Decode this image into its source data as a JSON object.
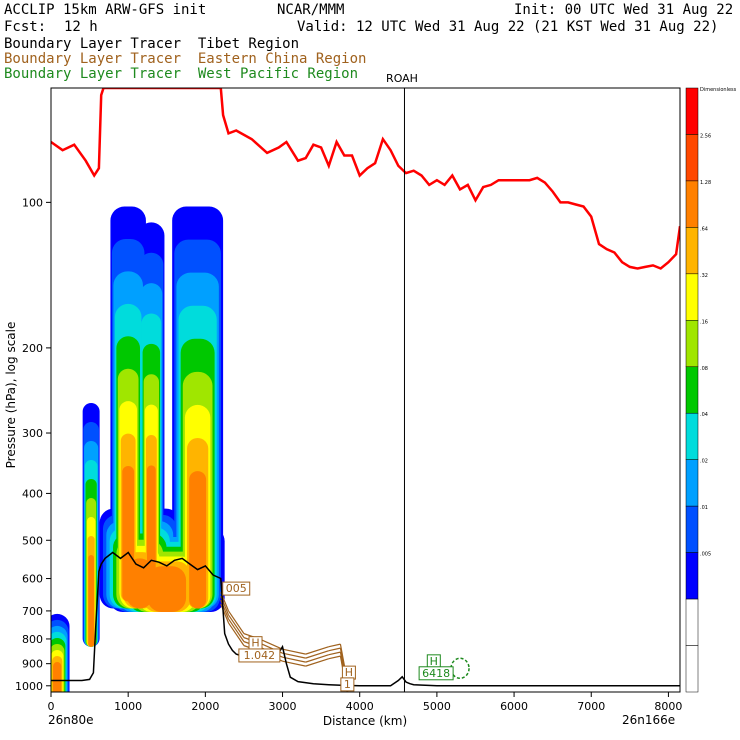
{
  "header": {
    "model": "ACCLIP 15km ARW-GFS init",
    "org": "NCAR/MMM",
    "init": "Init: 00 UTC Wed 31 Aug 22",
    "fcst_label": "Fcst:",
    "fcst_value": "12 h",
    "valid": "Valid: 12 UTC Wed 31 Aug 22 (21 KST Wed 31 Aug 22)",
    "legend": [
      {
        "text": "Boundary Layer Tracer  Tibet Region",
        "color": "#000000"
      },
      {
        "text": "Boundary Layer Tracer  Eastern China Region",
        "color": "#a0621e"
      },
      {
        "text": "Boundary Layer Tracer  West Pacific Region",
        "color": "#1e8a1e"
      }
    ]
  },
  "chart_data": {
    "type": "cross-section",
    "xlabel": "Distance (km)",
    "ylabel": "Pressure (hPa), log scale",
    "xlim": [
      0,
      8150
    ],
    "ylim": [
      1030,
      58
    ],
    "x_ticks": [
      0,
      1000,
      2000,
      3000,
      4000,
      5000,
      6000,
      7000,
      8000
    ],
    "y_ticks": [
      100,
      200,
      300,
      400,
      500,
      600,
      700,
      800,
      900,
      1000
    ],
    "endpoints": {
      "left": "26n80e",
      "right": "26n166e"
    },
    "vertical_marker": {
      "label": "ROAH",
      "x_km": 4580
    },
    "colorbar": {
      "colors": [
        "#ffffff",
        "#ffffff",
        "#0000ff",
        "#0050ff",
        "#00a0ff",
        "#00dcdc",
        "#00c800",
        "#a0e600",
        "#ffff00",
        "#ffb400",
        "#ff8000",
        "#ff4800",
        "#ff0000"
      ],
      "labels": [
        "Dimensionless",
        "2.56",
        "1.28",
        ".64",
        ".32",
        ".16",
        ".08",
        ".04",
        ".02",
        ".01",
        ".005"
      ]
    },
    "tropopause": {
      "color": "#ff0000",
      "x": [
        0,
        150,
        300,
        450,
        560,
        620,
        650,
        680,
        690,
        700,
        1000,
        1500,
        2000,
        2200,
        2230,
        2300,
        2400,
        2600,
        2800,
        2950,
        3050,
        3200,
        3300,
        3400,
        3500,
        3600,
        3700,
        3800,
        3900,
        4000,
        4100,
        4200,
        4300,
        4400,
        4500,
        4600,
        4700,
        4800,
        4900,
        5000,
        5100,
        5200,
        5300,
        5400,
        5500,
        5600,
        5700,
        5800,
        5900,
        6000,
        6100,
        6200,
        6300,
        6400,
        6500,
        6600,
        6700,
        6800,
        6900,
        7000,
        7100,
        7200,
        7300,
        7400,
        7500,
        7600,
        7700,
        7800,
        7900,
        8000,
        8100,
        8150
      ],
      "y": [
        75,
        78,
        76,
        82,
        88,
        85,
        60,
        58,
        58,
        58,
        58,
        58,
        58,
        58,
        66,
        72,
        71,
        74,
        79,
        77,
        75,
        82,
        81,
        76,
        77,
        84,
        75,
        80,
        80,
        88,
        85,
        83,
        74,
        78,
        84,
        87,
        86,
        88,
        92,
        90,
        92,
        88,
        94,
        92,
        99,
        93,
        92,
        90,
        90,
        90,
        90,
        90,
        89,
        91,
        95,
        100,
        100,
        101,
        102,
        107,
        122,
        125,
        127,
        133,
        136,
        137,
        136,
        135,
        137,
        133,
        128,
        112
      ]
    },
    "terrain": {
      "color": "#000000",
      "x": [
        0,
        100,
        200,
        300,
        400,
        500,
        550,
        580,
        620,
        650,
        700,
        800,
        900,
        1000,
        1100,
        1200,
        1300,
        1400,
        1500,
        1600,
        1700,
        1800,
        1900,
        2000,
        2100,
        2200,
        2250,
        2300,
        2350,
        2400,
        2500,
        2600,
        2700,
        2800,
        2850,
        2900,
        2950,
        3000,
        3050,
        3100,
        3200,
        3400,
        3600,
        3800,
        4000,
        4200,
        4400,
        4500,
        4550,
        4600,
        4650,
        4700,
        5000,
        6000,
        7000,
        8000,
        8150
      ],
      "y": [
        975,
        975,
        975,
        975,
        975,
        970,
        940,
        750,
        580,
        560,
        545,
        530,
        545,
        530,
        560,
        570,
        550,
        555,
        565,
        550,
        545,
        560,
        575,
        565,
        590,
        600,
        780,
        820,
        845,
        860,
        870,
        880,
        875,
        890,
        880,
        860,
        855,
        830,
        900,
        960,
        980,
        990,
        995,
        998,
        1000,
        1000,
        1000,
        975,
        958,
        982,
        990,
        995,
        1000,
        1000,
        1000,
        1000,
        1000
      ]
    },
    "tracer_fields": [
      {
        "region": "Tibet Region",
        "label": "",
        "x": 0,
        "y": 0
      },
      {
        "region": "Eastern China Region",
        "label": "005",
        "x_km": 2400,
        "p_hpa": 640
      },
      {
        "region": "Eastern China Region",
        "label": "H",
        "x_km": 2650,
        "p_hpa": 830
      },
      {
        "region": "Eastern China Region",
        "label": "1.042",
        "x_km": 2700,
        "p_hpa": 880
      },
      {
        "region": "Eastern China Region",
        "label": "H",
        "x_km": 3860,
        "p_hpa": 955
      },
      {
        "region": "Eastern China Region",
        "label": "1",
        "x_km": 3840,
        "p_hpa": 1010
      },
      {
        "region": "West Pacific Region",
        "label": "H",
        "x_km": 4960,
        "p_hpa": 905
      },
      {
        "region": "West Pacific Region",
        "label": "6418",
        "x_km": 4990,
        "p_hpa": 958
      }
    ]
  }
}
